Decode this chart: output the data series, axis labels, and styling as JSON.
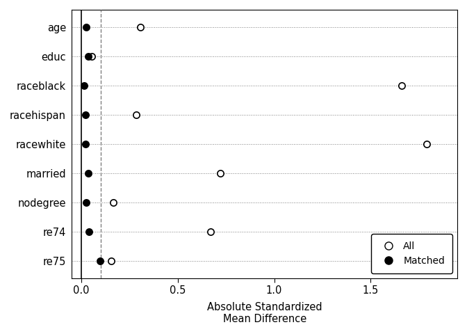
{
  "variables": [
    "age",
    "educ",
    "raceblack",
    "racehispan",
    "racewhite",
    "married",
    "nodegree",
    "re74",
    "re75"
  ],
  "all_values": [
    0.307,
    0.054,
    1.66,
    0.285,
    1.79,
    0.72,
    0.165,
    0.67,
    0.155
  ],
  "matched_values": [
    0.026,
    0.037,
    0.013,
    0.02,
    0.022,
    0.034,
    0.026,
    0.04,
    0.096
  ],
  "vline_solid": 0.0,
  "vline_dashed": 0.1,
  "xlabel": "Absolute Standardized\nMean Difference",
  "xlim": [
    -0.05,
    1.95
  ],
  "xticks": [
    0.0,
    0.5,
    1.0,
    1.5
  ],
  "legend_labels": [
    "All",
    "Matched"
  ],
  "background_color": "#ffffff",
  "dot_size_open": 45,
  "dot_size_filled": 45
}
